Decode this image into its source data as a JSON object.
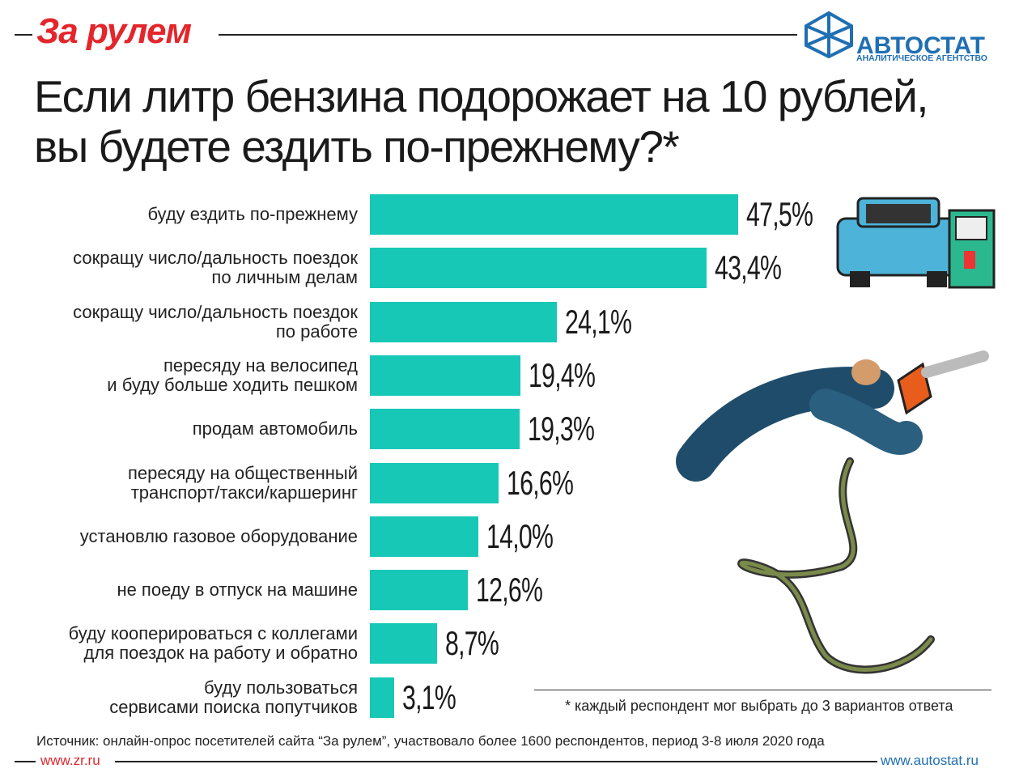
{
  "brand": "За рулем",
  "agency": {
    "name": "АВТОСТАТ",
    "tagline": "АНАЛИТИЧЕСКОЕ АГЕНТСТВО"
  },
  "chart_data": {
    "type": "bar",
    "orientation": "horizontal",
    "title": "Если литр бензина подорожает на 10 рублей,\nвы будете ездить по-прежнему?*",
    "categories": [
      "буду ездить по-прежнему",
      "сокращу число/дальность поездок\nпо личным делам",
      "сокращу число/дальность поездок\nпо работе",
      "пересяду на велосипед\nи буду больше ходить пешком",
      "продам автомобиль",
      "пересяду на общественный\nтранспорт/такси/каршеринг",
      "установлю газовое оборудование",
      "не поеду в отпуск на машине",
      "буду кооперироваться с коллегами\nдля поездок на работу и обратно",
      "буду пользоваться\nсервисами поиска попутчиков"
    ],
    "values": [
      47.5,
      43.4,
      24.1,
      19.4,
      19.3,
      16.6,
      14.0,
      12.6,
      8.7,
      3.1
    ],
    "value_labels": [
      "47,5%",
      "43,4%",
      "24,1%",
      "19,4%",
      "19,3%",
      "16,6%",
      "14,0%",
      "12,6%",
      "8,7%",
      "3,1%"
    ],
    "color": "#17c8b6",
    "footnote": "* каждый респондент мог выбрать  до 3 вариантов ответа",
    "source": "Источник: онлайн-опрос посетителей сайта “За рулем”, участвовало более 1600 респондентов, период 3-8 июля 2020 года"
  },
  "footer": {
    "left": "www.zr.ru",
    "right": "www.autostat.ru"
  }
}
